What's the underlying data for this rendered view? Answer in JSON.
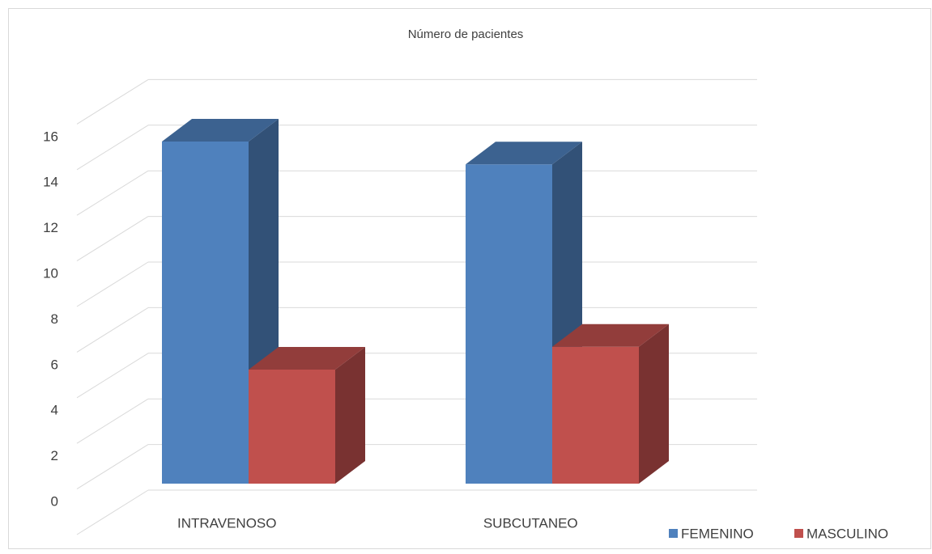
{
  "chart_data": {
    "type": "bar3d",
    "title": "Número de pacientes",
    "categories": [
      "INTRAVENOSO",
      "SUBCUTANEO"
    ],
    "series": [
      {
        "name": "FEMENINO",
        "color": "#4f81bd",
        "values": [
          15,
          14
        ]
      },
      {
        "name": "MASCULINO",
        "color": "#c0504d",
        "values": [
          5,
          6
        ]
      }
    ],
    "ylim": [
      0,
      18
    ],
    "yticks": [
      0,
      2,
      4,
      6,
      8,
      10,
      12,
      14,
      16
    ],
    "grid": true,
    "legend": "bottom-right"
  }
}
